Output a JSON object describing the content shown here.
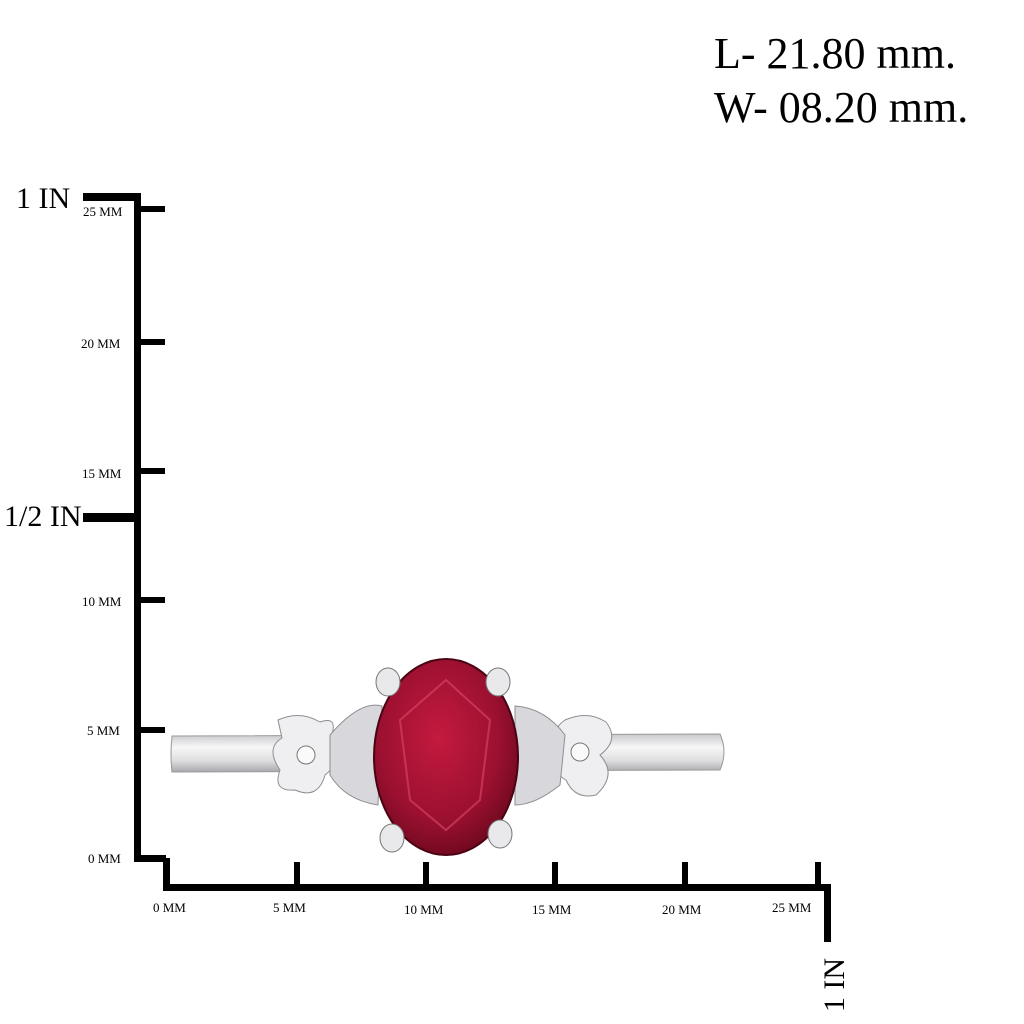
{
  "dimensions": {
    "length": "L- 21.80 mm.",
    "width": "W- 08.20 mm."
  },
  "vertical_scale": {
    "inch_labels": [
      "1 IN",
      "1/2 IN"
    ],
    "mm_labels": [
      "25 MM",
      "20 MM",
      "15 MM",
      "10 MM",
      "5 MM",
      "0 MM"
    ]
  },
  "horizontal_scale": {
    "mm_labels": [
      "0 MM",
      "5 MM",
      "10 MM",
      "15 MM",
      "20 MM",
      "25 MM"
    ],
    "inch_label": "1 IN"
  },
  "product": {
    "stone_color": "#9b1030",
    "metal_color": "#e8e8ea"
  }
}
